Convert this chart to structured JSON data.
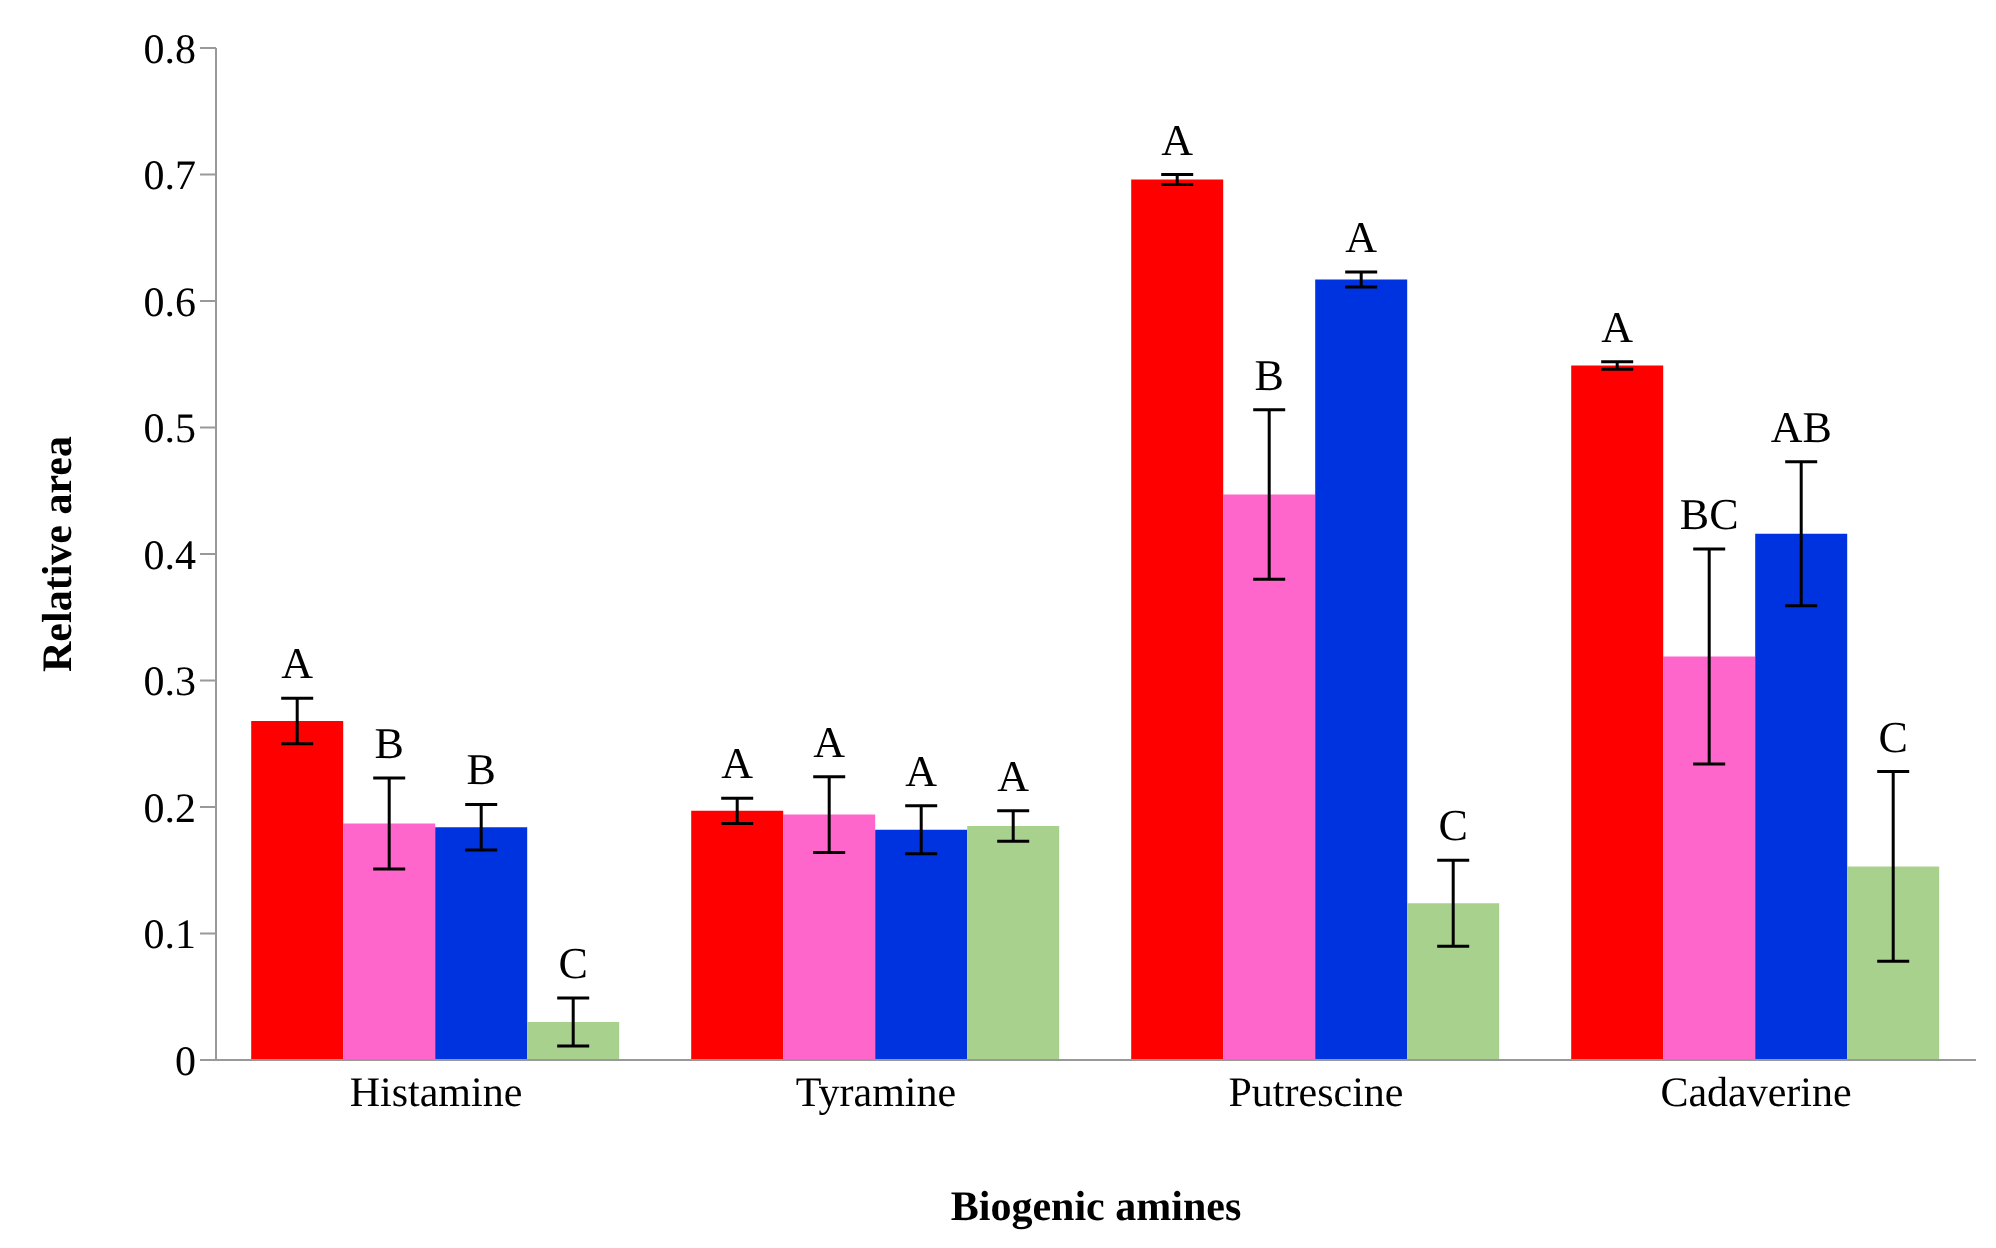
{
  "chart_data": {
    "type": "bar",
    "xlabel": "Biogenic amines",
    "ylabel": "Relative area",
    "categories": [
      "Histamine",
      "Tyramine",
      "Putrescine",
      "Cadaverine"
    ],
    "ylim": [
      0,
      0.8
    ],
    "yticks": [
      0,
      0.1,
      0.2,
      0.3,
      0.4,
      0.5,
      0.6,
      0.7,
      0.8
    ],
    "grid": false,
    "legend": false,
    "series": [
      {
        "color": "#ff0000",
        "values": [
          0.268,
          0.197,
          0.696,
          0.549
        ],
        "errors": [
          0.018,
          0.01,
          0.004,
          0.003
        ],
        "value_labels": [
          "A",
          "A",
          "A",
          "A"
        ]
      },
      {
        "color": "#ff66cc",
        "values": [
          0.187,
          0.194,
          0.447,
          0.319
        ],
        "errors": [
          0.036,
          0.03,
          0.067,
          0.085
        ],
        "value_labels": [
          "B",
          "A",
          "B",
          "BC"
        ]
      },
      {
        "color": "#0033e0",
        "values": [
          0.184,
          0.182,
          0.617,
          0.416
        ],
        "errors": [
          0.018,
          0.019,
          0.006,
          0.057
        ],
        "value_labels": [
          "B",
          "A",
          "A",
          "AB"
        ]
      },
      {
        "color": "#a9d18e",
        "values": [
          0.03,
          0.185,
          0.124,
          0.153
        ],
        "errors": [
          0.019,
          0.012,
          0.034,
          0.075
        ],
        "value_labels": [
          "C",
          "A",
          "C",
          "C"
        ]
      }
    ]
  }
}
